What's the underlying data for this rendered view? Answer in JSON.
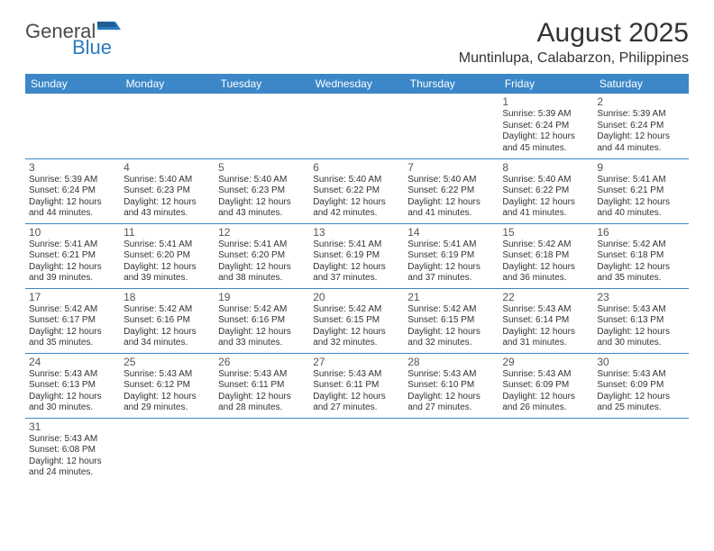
{
  "logo": {
    "text1": "General",
    "text2": "Blue",
    "flag_color": "#2b7bbf"
  },
  "title": "August 2025",
  "location": "Muntinlupa, Calabarzon, Philippines",
  "colors": {
    "header_bg": "#3b87c8",
    "header_text": "#ffffff",
    "rule": "#3b87c8",
    "text": "#333333",
    "logo_gray": "#4a4a4a",
    "logo_blue": "#2b7bbf"
  },
  "typography": {
    "title_fontsize": 30,
    "location_fontsize": 16,
    "dayheader_fontsize": 12,
    "daynum_fontsize": 12,
    "body_fontsize": 10
  },
  "day_headers": [
    "Sunday",
    "Monday",
    "Tuesday",
    "Wednesday",
    "Thursday",
    "Friday",
    "Saturday"
  ],
  "weeks": [
    [
      null,
      null,
      null,
      null,
      null,
      {
        "n": "1",
        "sunrise": "5:39 AM",
        "sunset": "6:24 PM",
        "dl1": "Daylight: 12 hours",
        "dl2": "and 45 minutes."
      },
      {
        "n": "2",
        "sunrise": "5:39 AM",
        "sunset": "6:24 PM",
        "dl1": "Daylight: 12 hours",
        "dl2": "and 44 minutes."
      }
    ],
    [
      {
        "n": "3",
        "sunrise": "5:39 AM",
        "sunset": "6:24 PM",
        "dl1": "Daylight: 12 hours",
        "dl2": "and 44 minutes."
      },
      {
        "n": "4",
        "sunrise": "5:40 AM",
        "sunset": "6:23 PM",
        "dl1": "Daylight: 12 hours",
        "dl2": "and 43 minutes."
      },
      {
        "n": "5",
        "sunrise": "5:40 AM",
        "sunset": "6:23 PM",
        "dl1": "Daylight: 12 hours",
        "dl2": "and 43 minutes."
      },
      {
        "n": "6",
        "sunrise": "5:40 AM",
        "sunset": "6:22 PM",
        "dl1": "Daylight: 12 hours",
        "dl2": "and 42 minutes."
      },
      {
        "n": "7",
        "sunrise": "5:40 AM",
        "sunset": "6:22 PM",
        "dl1": "Daylight: 12 hours",
        "dl2": "and 41 minutes."
      },
      {
        "n": "8",
        "sunrise": "5:40 AM",
        "sunset": "6:22 PM",
        "dl1": "Daylight: 12 hours",
        "dl2": "and 41 minutes."
      },
      {
        "n": "9",
        "sunrise": "5:41 AM",
        "sunset": "6:21 PM",
        "dl1": "Daylight: 12 hours",
        "dl2": "and 40 minutes."
      }
    ],
    [
      {
        "n": "10",
        "sunrise": "5:41 AM",
        "sunset": "6:21 PM",
        "dl1": "Daylight: 12 hours",
        "dl2": "and 39 minutes."
      },
      {
        "n": "11",
        "sunrise": "5:41 AM",
        "sunset": "6:20 PM",
        "dl1": "Daylight: 12 hours",
        "dl2": "and 39 minutes."
      },
      {
        "n": "12",
        "sunrise": "5:41 AM",
        "sunset": "6:20 PM",
        "dl1": "Daylight: 12 hours",
        "dl2": "and 38 minutes."
      },
      {
        "n": "13",
        "sunrise": "5:41 AM",
        "sunset": "6:19 PM",
        "dl1": "Daylight: 12 hours",
        "dl2": "and 37 minutes."
      },
      {
        "n": "14",
        "sunrise": "5:41 AM",
        "sunset": "6:19 PM",
        "dl1": "Daylight: 12 hours",
        "dl2": "and 37 minutes."
      },
      {
        "n": "15",
        "sunrise": "5:42 AM",
        "sunset": "6:18 PM",
        "dl1": "Daylight: 12 hours",
        "dl2": "and 36 minutes."
      },
      {
        "n": "16",
        "sunrise": "5:42 AM",
        "sunset": "6:18 PM",
        "dl1": "Daylight: 12 hours",
        "dl2": "and 35 minutes."
      }
    ],
    [
      {
        "n": "17",
        "sunrise": "5:42 AM",
        "sunset": "6:17 PM",
        "dl1": "Daylight: 12 hours",
        "dl2": "and 35 minutes."
      },
      {
        "n": "18",
        "sunrise": "5:42 AM",
        "sunset": "6:16 PM",
        "dl1": "Daylight: 12 hours",
        "dl2": "and 34 minutes."
      },
      {
        "n": "19",
        "sunrise": "5:42 AM",
        "sunset": "6:16 PM",
        "dl1": "Daylight: 12 hours",
        "dl2": "and 33 minutes."
      },
      {
        "n": "20",
        "sunrise": "5:42 AM",
        "sunset": "6:15 PM",
        "dl1": "Daylight: 12 hours",
        "dl2": "and 32 minutes."
      },
      {
        "n": "21",
        "sunrise": "5:42 AM",
        "sunset": "6:15 PM",
        "dl1": "Daylight: 12 hours",
        "dl2": "and 32 minutes."
      },
      {
        "n": "22",
        "sunrise": "5:43 AM",
        "sunset": "6:14 PM",
        "dl1": "Daylight: 12 hours",
        "dl2": "and 31 minutes."
      },
      {
        "n": "23",
        "sunrise": "5:43 AM",
        "sunset": "6:13 PM",
        "dl1": "Daylight: 12 hours",
        "dl2": "and 30 minutes."
      }
    ],
    [
      {
        "n": "24",
        "sunrise": "5:43 AM",
        "sunset": "6:13 PM",
        "dl1": "Daylight: 12 hours",
        "dl2": "and 30 minutes."
      },
      {
        "n": "25",
        "sunrise": "5:43 AM",
        "sunset": "6:12 PM",
        "dl1": "Daylight: 12 hours",
        "dl2": "and 29 minutes."
      },
      {
        "n": "26",
        "sunrise": "5:43 AM",
        "sunset": "6:11 PM",
        "dl1": "Daylight: 12 hours",
        "dl2": "and 28 minutes."
      },
      {
        "n": "27",
        "sunrise": "5:43 AM",
        "sunset": "6:11 PM",
        "dl1": "Daylight: 12 hours",
        "dl2": "and 27 minutes."
      },
      {
        "n": "28",
        "sunrise": "5:43 AM",
        "sunset": "6:10 PM",
        "dl1": "Daylight: 12 hours",
        "dl2": "and 27 minutes."
      },
      {
        "n": "29",
        "sunrise": "5:43 AM",
        "sunset": "6:09 PM",
        "dl1": "Daylight: 12 hours",
        "dl2": "and 26 minutes."
      },
      {
        "n": "30",
        "sunrise": "5:43 AM",
        "sunset": "6:09 PM",
        "dl1": "Daylight: 12 hours",
        "dl2": "and 25 minutes."
      }
    ],
    [
      {
        "n": "31",
        "sunrise": "5:43 AM",
        "sunset": "6:08 PM",
        "dl1": "Daylight: 12 hours",
        "dl2": "and 24 minutes."
      },
      null,
      null,
      null,
      null,
      null,
      null
    ]
  ],
  "labels": {
    "sunrise_prefix": "Sunrise: ",
    "sunset_prefix": "Sunset: "
  }
}
